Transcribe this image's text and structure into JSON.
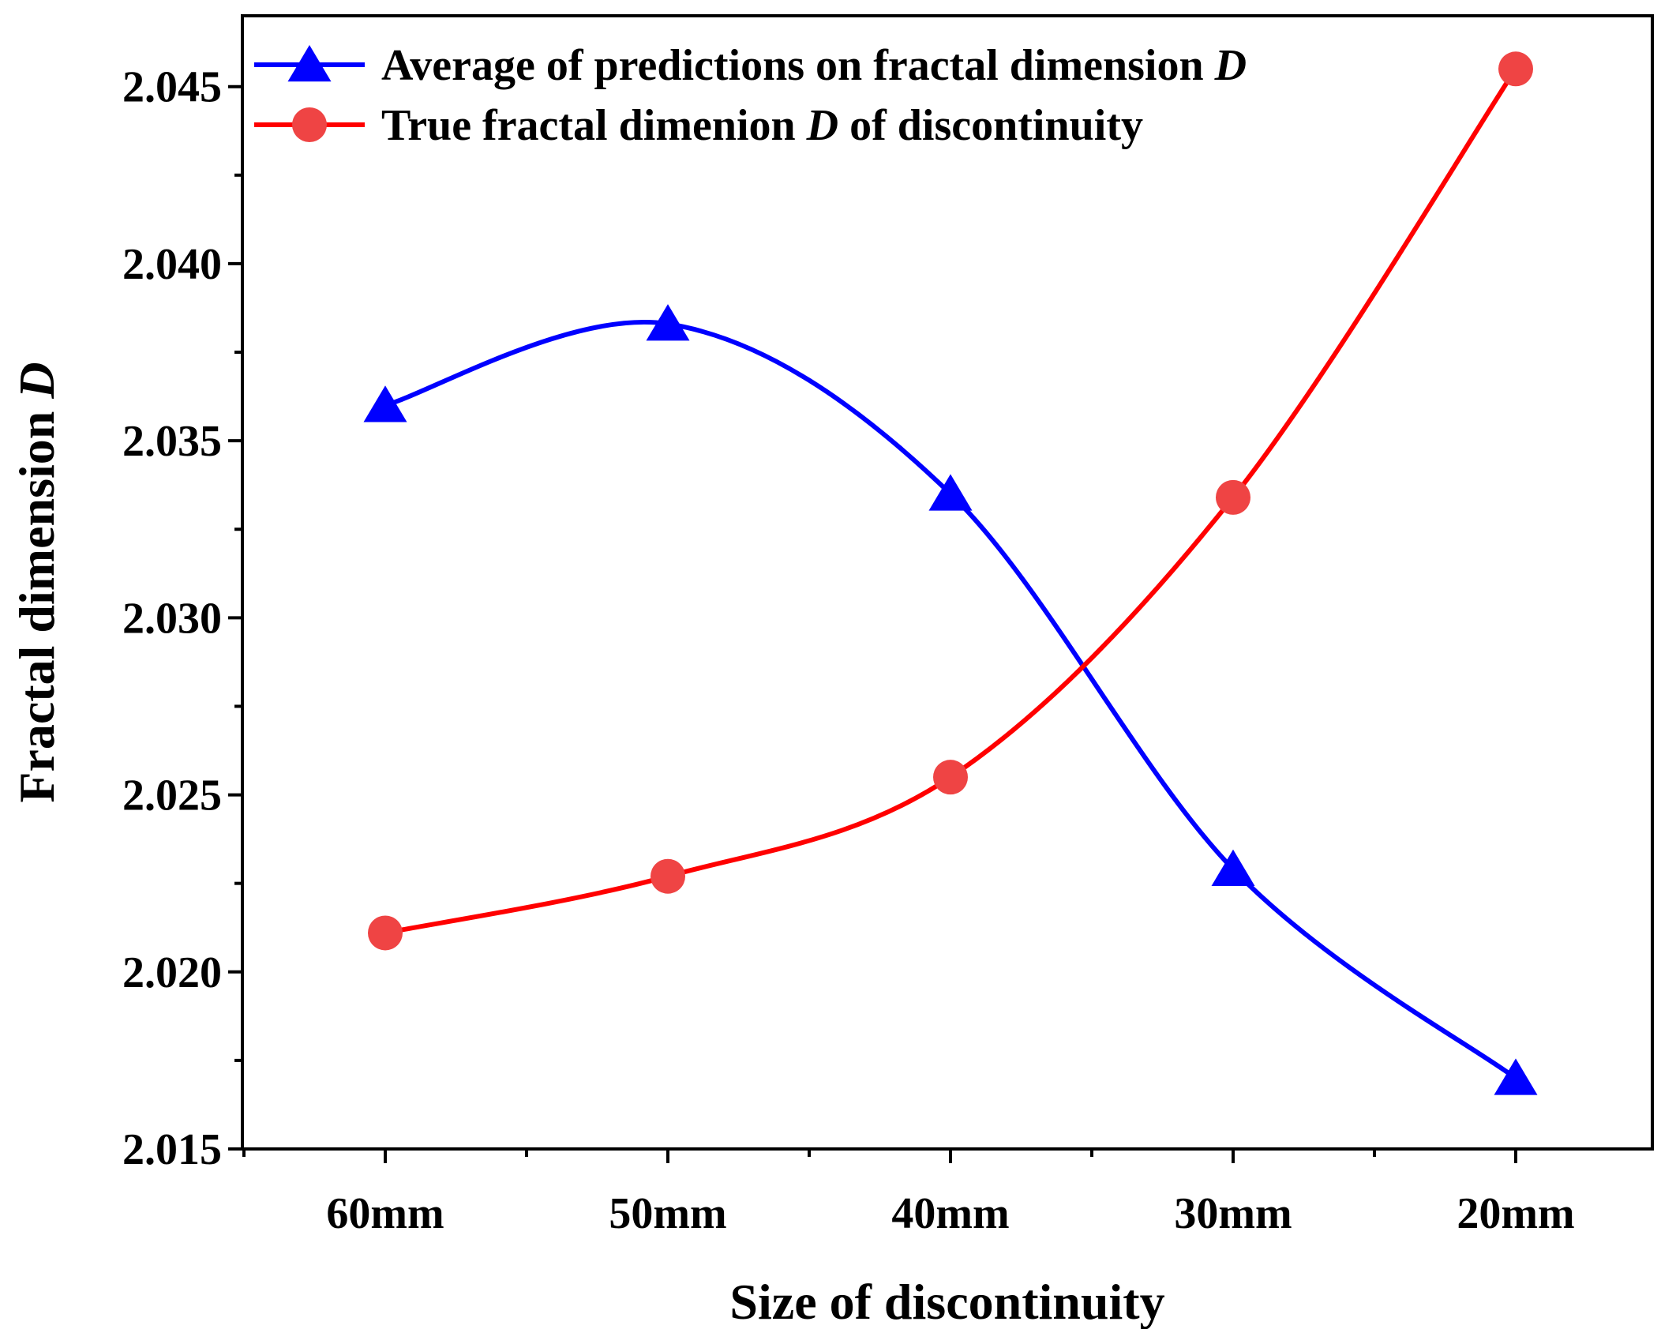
{
  "chart_data": {
    "type": "line",
    "categories": [
      "60mm",
      "50mm",
      "40mm",
      "30mm",
      "20mm"
    ],
    "xlabel": "Size of discontinuity",
    "ylabel": "Fractal dimension",
    "ylabel_italic": "D",
    "ylim": [
      2.015,
      2.047
    ],
    "yticks": [
      "2.015",
      "2.020",
      "2.025",
      "2.030",
      "2.035",
      "2.040",
      "2.045"
    ],
    "ytick_values": [
      2.015,
      2.02,
      2.025,
      2.03,
      2.035,
      2.04,
      2.045
    ],
    "smooth": true,
    "legend_position": "top-left",
    "series": [
      {
        "name": "Average of predictions on fractal dimension",
        "name_italic": "D",
        "name_suffix": "",
        "marker": "triangle",
        "color": "#0000ff",
        "values": [
          2.036,
          2.0383,
          2.0335,
          2.0229,
          2.017
        ]
      },
      {
        "name": "True fractal dimenion",
        "name_italic": "D",
        "name_suffix": "of discontinuity",
        "marker": "circle",
        "color": "#ff0000",
        "marker_fill": "#ef4444",
        "values": [
          2.0211,
          2.0227,
          2.0255,
          2.0334,
          2.0455
        ]
      }
    ]
  }
}
